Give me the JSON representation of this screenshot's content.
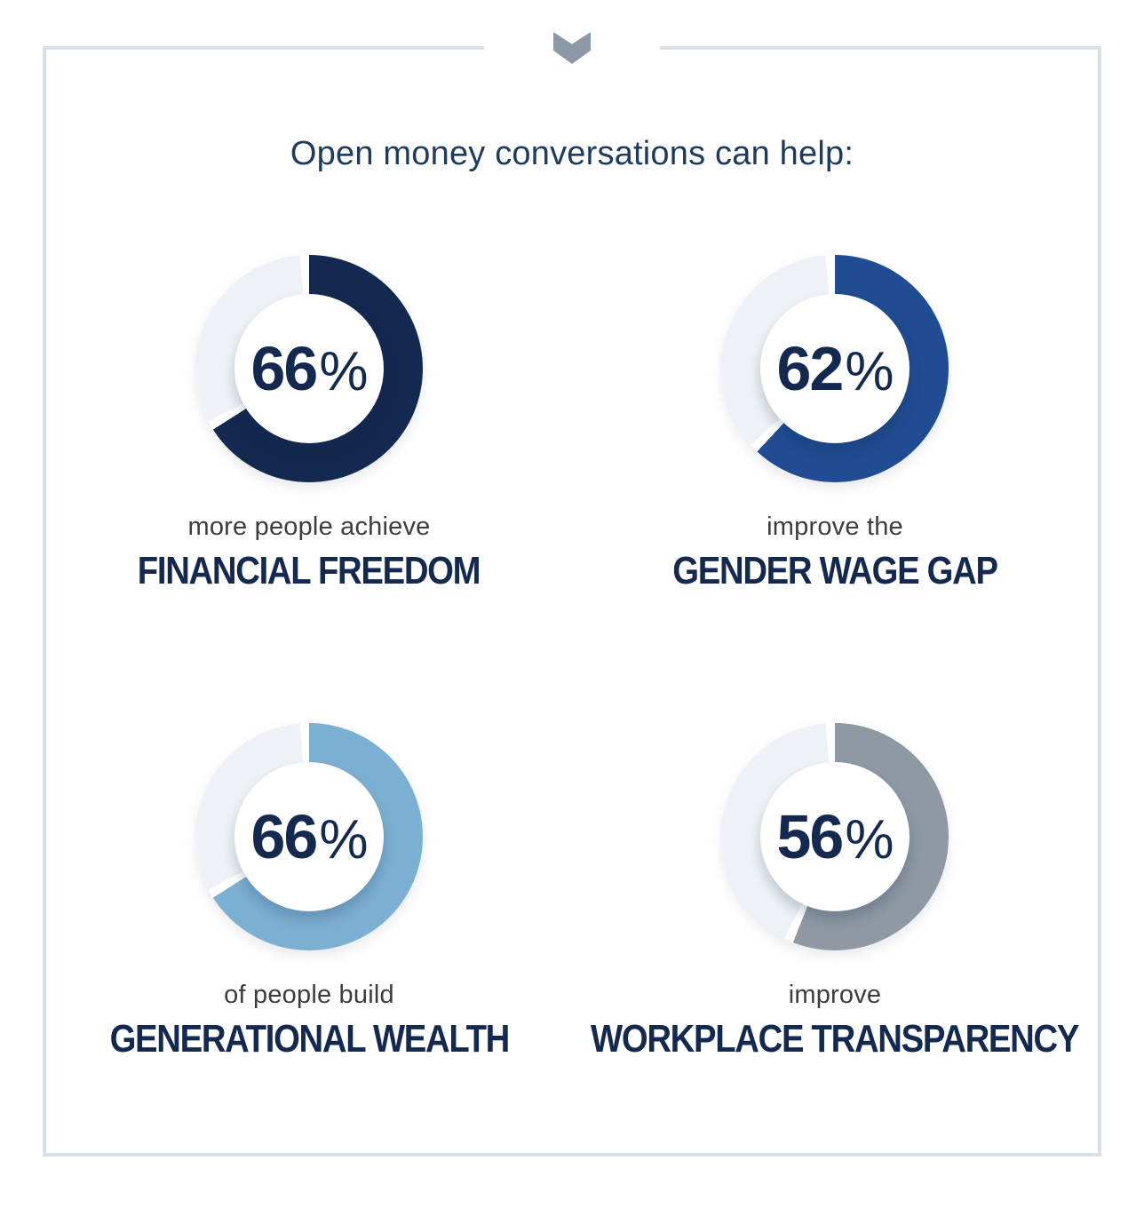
{
  "header": {
    "icon": "chevron-down",
    "icon_color": "#8b99a7",
    "frame_border_color": "#d8e1e8"
  },
  "chart_data": {
    "type": "donut",
    "title": "Open money conversations can help:",
    "title_color": "#1d3b5e",
    "track_color": "#eef1f5",
    "separator_gap_percent": 1.3,
    "value_text_color": "#13294f",
    "items": [
      {
        "value": 66,
        "unit": "%",
        "line1": "more people achieve",
        "line2": "FINANCIAL FREEDOM",
        "ring_color": "#13294f"
      },
      {
        "value": 62,
        "unit": "%",
        "line1": "improve the",
        "line2": "GENDER WAGE GAP",
        "ring_color": "#1f4c92"
      },
      {
        "value": 66,
        "unit": "%",
        "line1": "of people build",
        "line2": "GENERATIONAL WEALTH",
        "ring_color": "#7cb0d2"
      },
      {
        "value": 56,
        "unit": "%",
        "line1": "improve",
        "line2": "WORKPLACE TRANSPARENCY",
        "ring_color": "#8e99a4"
      }
    ]
  }
}
